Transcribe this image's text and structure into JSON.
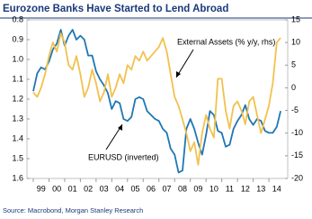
{
  "chart_data": {
    "type": "line",
    "title": "Eurozone Banks Have Started to Lend Abroad",
    "source": "Source: Macrobond, Morgan Stanley Research",
    "annotations": [
      "External Assets (% y/y, rhs)",
      "EURUSD (inverted)"
    ],
    "x": [
      1999.0,
      1999.25,
      1999.5,
      1999.75,
      2000.0,
      2000.25,
      2000.5,
      2000.75,
      2001.0,
      2001.25,
      2001.5,
      2001.75,
      2002.0,
      2002.25,
      2002.5,
      2002.75,
      2003.0,
      2003.25,
      2003.5,
      2003.75,
      2004.0,
      2004.25,
      2004.5,
      2004.75,
      2005.0,
      2005.25,
      2005.5,
      2005.75,
      2006.0,
      2006.25,
      2006.5,
      2006.75,
      2007.0,
      2007.25,
      2007.5,
      2007.75,
      2008.0,
      2008.25,
      2008.5,
      2008.75,
      2009.0,
      2009.25,
      2009.5,
      2009.75,
      2010.0,
      2010.25,
      2010.5,
      2010.75,
      2011.0,
      2011.25,
      2011.5,
      2011.75,
      2012.0,
      2012.25,
      2012.5,
      2012.75,
      2013.0,
      2013.25,
      2013.5,
      2013.75,
      2014.0,
      2014.25,
      2014.5,
      2014.75
    ],
    "xlim": [
      1998.6,
      2015.2
    ],
    "xticks": [
      {
        "value": 1999,
        "label": "99"
      },
      {
        "value": 2000,
        "label": "00"
      },
      {
        "value": 2001,
        "label": "01"
      },
      {
        "value": 2002,
        "label": "02"
      },
      {
        "value": 2003,
        "label": "03"
      },
      {
        "value": 2004,
        "label": "04"
      },
      {
        "value": 2005,
        "label": "05"
      },
      {
        "value": 2006,
        "label": "06"
      },
      {
        "value": 2007,
        "label": "07"
      },
      {
        "value": 2008,
        "label": "08"
      },
      {
        "value": 2009,
        "label": "09"
      },
      {
        "value": 2010,
        "label": "10"
      },
      {
        "value": 2011,
        "label": "11"
      },
      {
        "value": 2012,
        "label": "12"
      },
      {
        "value": 2013,
        "label": "13"
      },
      {
        "value": 2014,
        "label": "14"
      }
    ],
    "ylim": [
      1.6,
      0.8
    ],
    "yticks": [
      0.8,
      0.9,
      {
        "value": 1.0,
        "label": "1.0"
      },
      1.1,
      1.2,
      1.3,
      1.4,
      1.5,
      1.6
    ],
    "y2lim": [
      -20,
      15
    ],
    "y2ticks": [
      -20,
      -15,
      -10,
      -5,
      0,
      5,
      10,
      15
    ],
    "series": [
      {
        "name": "EURUSD (inverted)",
        "color": "#1f77b4",
        "values": [
          1.16,
          1.07,
          1.04,
          1.05,
          1.01,
          0.95,
          0.92,
          0.85,
          0.93,
          0.88,
          0.85,
          0.9,
          0.88,
          0.9,
          0.98,
          0.98,
          1.06,
          1.1,
          1.13,
          1.17,
          1.25,
          1.21,
          1.22,
          1.3,
          1.31,
          1.29,
          1.2,
          1.19,
          1.2,
          1.26,
          1.28,
          1.3,
          1.31,
          1.35,
          1.37,
          1.45,
          1.48,
          1.57,
          1.56,
          1.35,
          1.3,
          1.35,
          1.42,
          1.48,
          1.38,
          1.26,
          1.28,
          1.36,
          1.37,
          1.44,
          1.43,
          1.35,
          1.31,
          1.28,
          1.23,
          1.3,
          1.33,
          1.3,
          1.31,
          1.36,
          1.37,
          1.37,
          1.34,
          1.26
        ]
      },
      {
        "name": "External Assets (% y/y, rhs)",
        "color": "#f2c14e",
        "axis": "y2",
        "values": [
          -1,
          -2,
          0,
          3,
          7,
          10,
          8,
          12,
          10,
          5,
          4,
          7,
          3,
          -2,
          0,
          4,
          1,
          -3,
          -1,
          3,
          -2,
          0,
          3,
          1,
          5,
          4,
          7,
          6,
          8,
          6,
          7,
          8,
          9,
          11,
          8,
          3,
          -2,
          -4,
          -7,
          -10,
          -14,
          -12,
          -17,
          -10,
          -6,
          -9,
          -11,
          2,
          2,
          -5,
          -9,
          -4,
          -3,
          -5,
          -8,
          -3,
          -2,
          -6,
          -10,
          -7,
          -4,
          1,
          10,
          11
        ]
      }
    ]
  }
}
